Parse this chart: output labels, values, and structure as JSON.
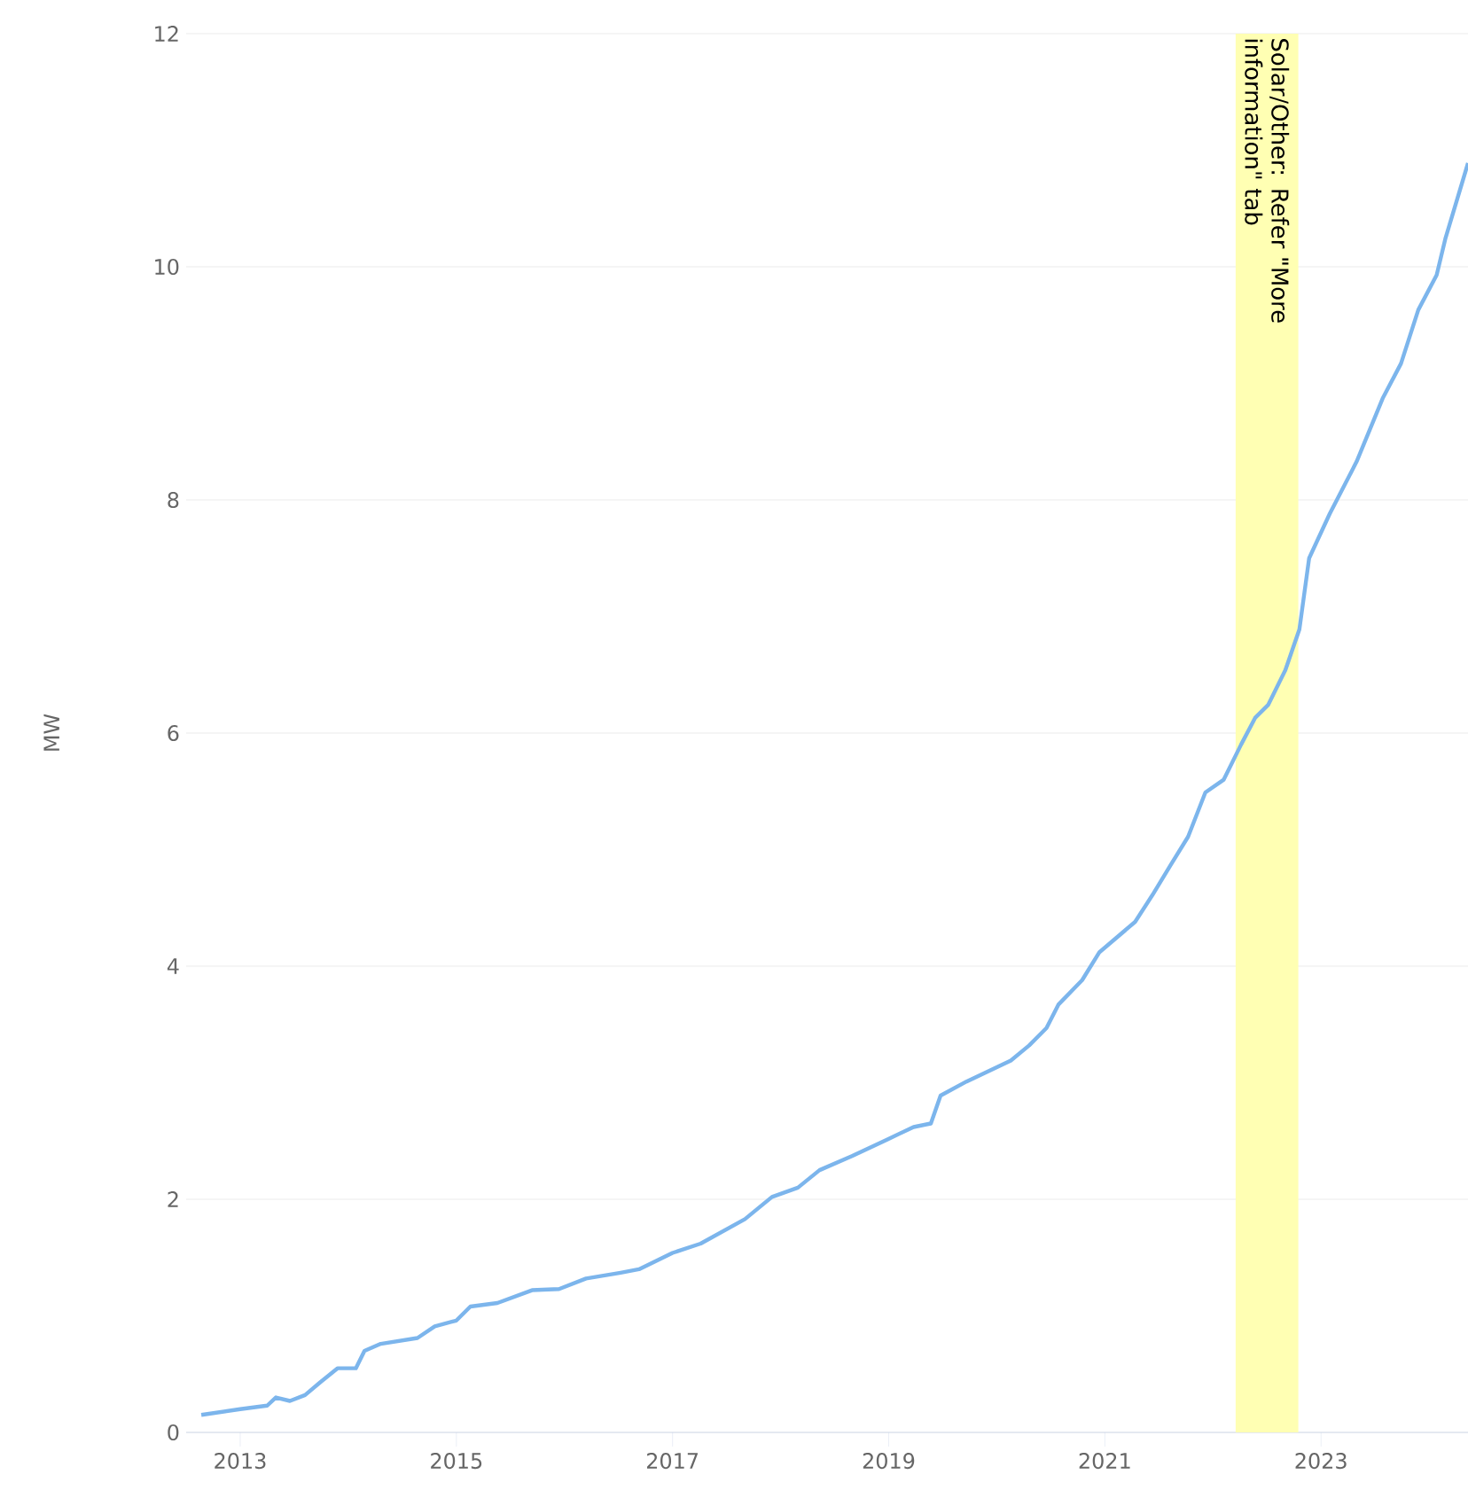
{
  "chart_data": {
    "type": "line",
    "ylabel": "MW",
    "xlim": [
      2012.5,
      2024.36
    ],
    "xticks": [
      2013,
      2015,
      2017,
      2019,
      2021,
      2023
    ],
    "ylim": [
      0,
      12
    ],
    "yticks": [
      0,
      2,
      4,
      6,
      8,
      10,
      12
    ],
    "grid": "y",
    "marker": "none",
    "line_style": "solid",
    "bands": [
      {
        "axis": "x",
        "from": 2022.21,
        "to": 2022.79,
        "label": "Solar/Other: Refer \"More information\" tab",
        "color": "#ffffb3"
      }
    ],
    "series": [
      {
        "color": "#7cb5ec",
        "x": [
          2012.64,
          2013.0,
          2013.25,
          2013.33,
          2013.46,
          2013.6,
          2013.74,
          2013.9,
          2014.07,
          2014.15,
          2014.3,
          2014.64,
          2014.8,
          2015.0,
          2015.13,
          2015.38,
          2015.7,
          2015.95,
          2016.2,
          2016.52,
          2016.69,
          2017.0,
          2017.26,
          2017.67,
          2017.92,
          2018.16,
          2018.36,
          2018.66,
          2018.98,
          2019.23,
          2019.39,
          2019.48,
          2019.72,
          2020.13,
          2020.3,
          2020.46,
          2020.57,
          2020.79,
          2020.95,
          2021.28,
          2021.44,
          2021.61,
          2021.77,
          2021.93,
          2022.1,
          2022.26,
          2022.39,
          2022.51,
          2022.67,
          2022.8,
          2022.89,
          2023.08,
          2023.33,
          2023.57,
          2023.74,
          2023.9,
          2024.07,
          2024.15,
          2024.36
        ],
        "values": [
          0.15,
          0.2,
          0.23,
          0.3,
          0.27,
          0.32,
          0.43,
          0.55,
          0.55,
          0.7,
          0.76,
          0.81,
          0.91,
          0.96,
          1.08,
          1.11,
          1.22,
          1.23,
          1.32,
          1.37,
          1.4,
          1.54,
          1.62,
          1.83,
          2.02,
          2.1,
          2.25,
          2.37,
          2.51,
          2.62,
          2.65,
          2.89,
          3.01,
          3.19,
          3.32,
          3.47,
          3.67,
          3.88,
          4.12,
          4.38,
          4.61,
          4.87,
          5.11,
          5.49,
          5.6,
          5.9,
          6.13,
          6.24,
          6.54,
          6.89,
          7.5,
          7.88,
          8.33,
          8.87,
          9.17,
          9.63,
          9.93,
          10.24,
          10.89
        ]
      }
    ]
  }
}
